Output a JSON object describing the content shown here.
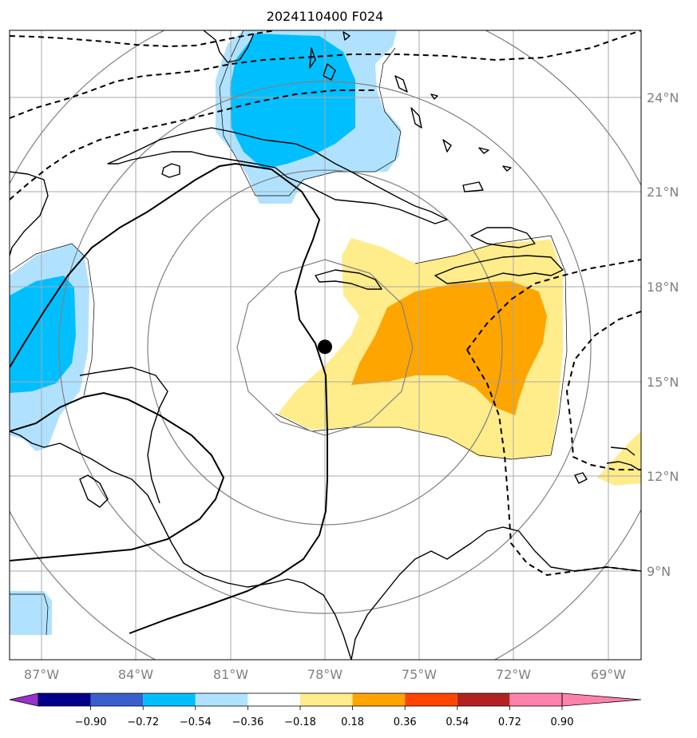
{
  "title": "2024110400 F024",
  "longitude_labels": [
    "87°W",
    "84°W",
    "81°W",
    "78°W",
    "75°W",
    "72°W",
    "69°W"
  ],
  "latitude_labels": [
    "24°N",
    "21°N",
    "18°N",
    "15°N",
    "12°N",
    "9°N"
  ],
  "colorbar": {
    "tick_labels": [
      "−0.90",
      "−0.72",
      "−0.54",
      "−0.36",
      "−0.18",
      "0.18",
      "0.36",
      "0.54",
      "0.72",
      "0.90"
    ],
    "colors": [
      "#9932cc",
      "#00008b",
      "#3a5fcd",
      "#00bfff",
      "#b0e2ff",
      "#ffffff",
      "#ffec8b",
      "#ffa500",
      "#ff4500",
      "#b22222",
      "#ff82ab"
    ]
  },
  "field_colors": {
    "light_blue": "#b0e2ff",
    "blue": "#00bfff",
    "light_yellow": "#ffec8b",
    "orange": "#ffa500"
  },
  "storm_marker": {
    "lon": -78.0,
    "lat": 16.1,
    "color": "#000000"
  }
}
